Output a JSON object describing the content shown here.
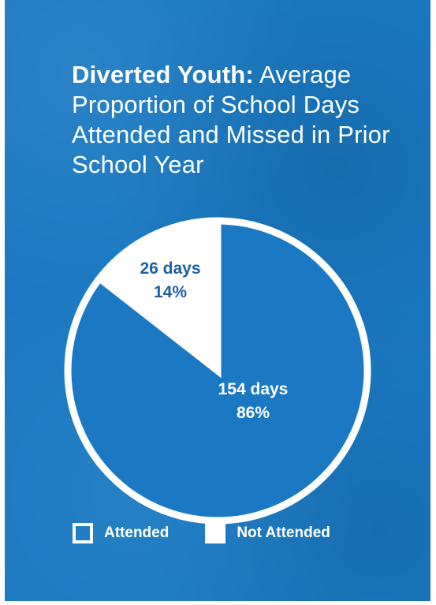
{
  "title": {
    "bold": "Diverted Youth:",
    "rest": "Average Proportion of School Days Attended and Missed in Prior School Year"
  },
  "colors": {
    "background": "#1a79c2",
    "attended_label": "#ffffff",
    "not_attended_label": "#1b5fa8",
    "white": "#ffffff"
  },
  "chart_data": {
    "type": "pie",
    "slices": [
      {
        "name": "Attended",
        "value": 154,
        "percent": 86,
        "label_days": "154 days",
        "label_pct": "86%"
      },
      {
        "name": "Not Attended",
        "value": 26,
        "percent": 14,
        "label_days": "26 days",
        "label_pct": "14%"
      }
    ],
    "legend": {
      "position": "bottom-left",
      "items": [
        {
          "label": "Attended",
          "style": "outline"
        },
        {
          "label": "Not Attended",
          "style": "solid"
        }
      ]
    }
  }
}
